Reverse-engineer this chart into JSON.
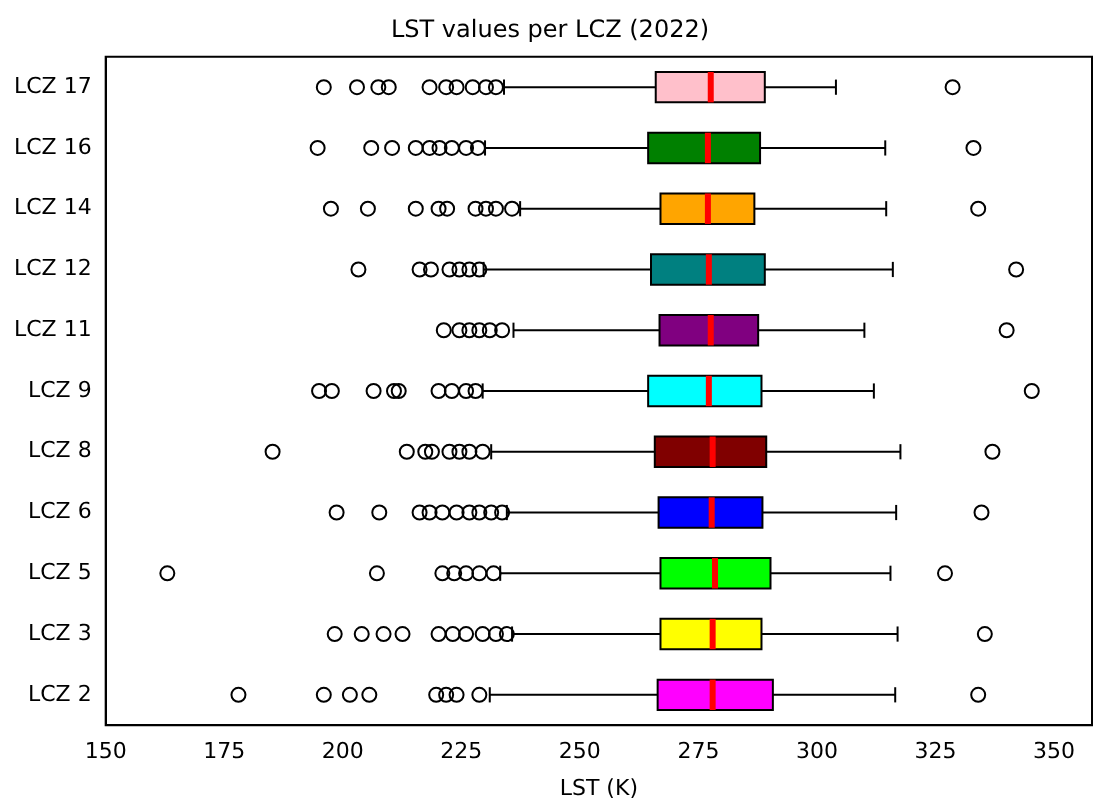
{
  "chart_data": {
    "type": "box",
    "orientation": "horizontal",
    "title": "LST values per LCZ (2022)",
    "xlabel": "LST (K)",
    "categories": [
      "LCZ 17",
      "LCZ 16",
      "LCZ 14",
      "LCZ 12",
      "LCZ 11",
      "LCZ 9",
      "LCZ 8",
      "LCZ 6",
      "LCZ 5",
      "LCZ 3",
      "LCZ 2"
    ],
    "colors": [
      "#ffc0cb",
      "#008000",
      "#ffa500",
      "#008080",
      "#800080",
      "#00ffff",
      "#800000",
      "#0000ff",
      "#00ff00",
      "#ffff00",
      "#ff00ff"
    ],
    "marker": "circle",
    "xlim": [
      150,
      358
    ],
    "xticks": [
      150,
      175,
      200,
      225,
      250,
      275,
      300,
      325,
      350
    ],
    "boxes": [
      {
        "low": 234,
        "q1": 266,
        "median": 277.6,
        "q3": 289,
        "high": 304,
        "outliers": [
          196,
          203,
          207.5,
          209.7,
          218.3,
          221.8,
          224,
          227.4,
          230.2,
          232.3,
          328.6
        ]
      },
      {
        "low": 230,
        "q1": 264.4,
        "median": 277,
        "q3": 288,
        "high": 314.4,
        "outliers": [
          194.7,
          206,
          210.4,
          215.4,
          218.3,
          220.4,
          223,
          226,
          228.5,
          333
        ]
      },
      {
        "low": 237.4,
        "q1": 267,
        "median": 277,
        "q3": 286.8,
        "high": 314.6,
        "outliers": [
          197.5,
          205.3,
          215.4,
          220.2,
          222,
          228,
          230.2,
          232.3,
          235.7,
          334
        ]
      },
      {
        "low": 229.7,
        "q1": 265,
        "median": 277.2,
        "q3": 289,
        "high": 316,
        "outliers": [
          203.3,
          216.2,
          218.6,
          222.5,
          224.6,
          226.7,
          228.8,
          342
        ]
      },
      {
        "low": 236,
        "q1": 266.8,
        "median": 277.6,
        "q3": 287.6,
        "high": 310,
        "outliers": [
          221.3,
          224.6,
          226.7,
          228.8,
          231,
          233.6,
          340
        ]
      },
      {
        "low": 229.5,
        "q1": 264.4,
        "median": 277.2,
        "q3": 288.3,
        "high": 312,
        "outliers": [
          195,
          197.7,
          206.5,
          210.8,
          211.8,
          220.2,
          223,
          226,
          228,
          345.3
        ]
      },
      {
        "low": 231.3,
        "q1": 265.8,
        "median": 278,
        "q3": 289.3,
        "high": 317.6,
        "outliers": [
          185.2,
          213.5,
          217.4,
          218.8,
          222.5,
          224.6,
          226.7,
          229.5,
          337
        ]
      },
      {
        "low": 234.6,
        "q1": 266.6,
        "median": 277.8,
        "q3": 288.5,
        "high": 316.7,
        "outliers": [
          198.7,
          207.7,
          216.2,
          218.3,
          221,
          224,
          226.7,
          228.8,
          231.3,
          233.6,
          334.7
        ]
      },
      {
        "low": 233.2,
        "q1": 267,
        "median": 278.5,
        "q3": 290.2,
        "high": 315.5,
        "outliers": [
          163,
          207.2,
          221,
          223.5,
          226,
          228.8,
          231.8,
          327
        ]
      },
      {
        "low": 235.7,
        "q1": 267,
        "median": 278,
        "q3": 288.3,
        "high": 317,
        "outliers": [
          198.3,
          204,
          208.6,
          212.6,
          220.2,
          223.2,
          226,
          229.5,
          232.3,
          234.6,
          335.4
        ]
      },
      {
        "low": 231,
        "q1": 266.4,
        "median": 278,
        "q3": 290.7,
        "high": 316.5,
        "outliers": [
          178,
          196,
          201.5,
          205.6,
          219.7,
          221.8,
          224,
          228.8,
          334
        ]
      }
    ]
  }
}
